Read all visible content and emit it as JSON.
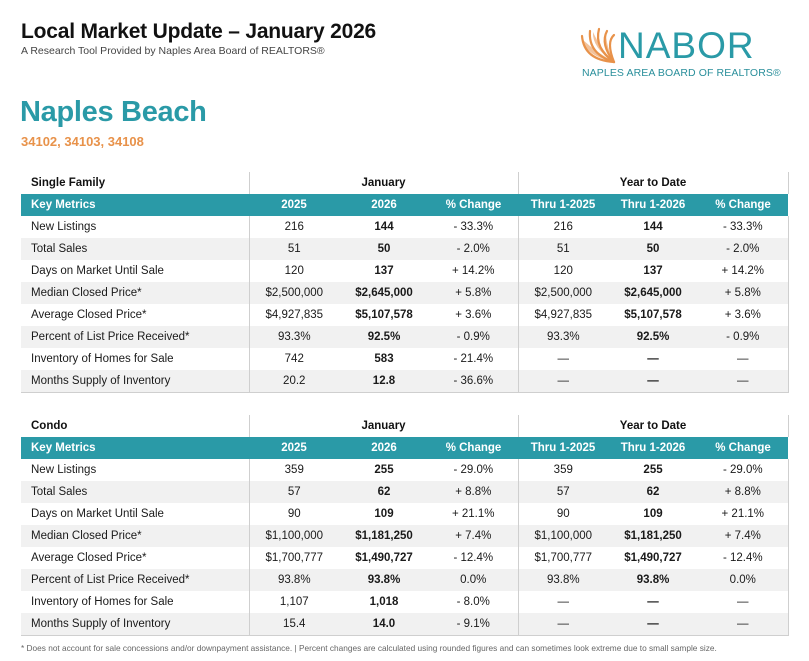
{
  "header": {
    "title": "Local Market Update – January 2026",
    "subtitle": "A Research Tool Provided by Naples Area Board of REALTORS®"
  },
  "logo": {
    "word": "NABOR",
    "tagline": "NAPLES AREA BOARD OF REALTORS®",
    "colors": {
      "teal": "#2a9aa7",
      "orange": "#e8924a"
    }
  },
  "area": {
    "name": "Naples Beach",
    "zips": "34102, 34103, 34108"
  },
  "columns": {
    "key_metrics": "Key Metrics",
    "january": "January",
    "ytd": "Year to Date",
    "y2025": "2025",
    "y2026": "2026",
    "pct": "% Change",
    "thru2025": "Thru 1-2025",
    "thru2026": "Thru 1-2026"
  },
  "single_family": {
    "label": "Single Family",
    "rows": [
      {
        "metric": "New Listings",
        "j25": "216",
        "j26": "144",
        "jpc": "- 33.3%",
        "y25": "216",
        "y26": "144",
        "ypc": "- 33.3%"
      },
      {
        "metric": "Total Sales",
        "j25": "51",
        "j26": "50",
        "jpc": "- 2.0%",
        "y25": "51",
        "y26": "50",
        "ypc": "- 2.0%"
      },
      {
        "metric": "Days on Market Until Sale",
        "j25": "120",
        "j26": "137",
        "jpc": "+ 14.2%",
        "y25": "120",
        "y26": "137",
        "ypc": "+ 14.2%"
      },
      {
        "metric": "Median Closed Price*",
        "j25": "$2,500,000",
        "j26": "$2,645,000",
        "jpc": "+ 5.8%",
        "y25": "$2,500,000",
        "y26": "$2,645,000",
        "ypc": "+ 5.8%"
      },
      {
        "metric": "Average Closed Price*",
        "j25": "$4,927,835",
        "j26": "$5,107,578",
        "jpc": "+ 3.6%",
        "y25": "$4,927,835",
        "y26": "$5,107,578",
        "ypc": "+ 3.6%"
      },
      {
        "metric": "Percent of List Price Received*",
        "j25": "93.3%",
        "j26": "92.5%",
        "jpc": "- 0.9%",
        "y25": "93.3%",
        "y26": "92.5%",
        "ypc": "- 0.9%"
      },
      {
        "metric": "Inventory of Homes for Sale",
        "j25": "742",
        "j26": "583",
        "jpc": "- 21.4%",
        "y25": "—",
        "y26": "—",
        "ypc": "—"
      },
      {
        "metric": "Months Supply of Inventory",
        "j25": "20.2",
        "j26": "12.8",
        "jpc": "- 36.6%",
        "y25": "—",
        "y26": "—",
        "ypc": "—"
      }
    ]
  },
  "condo": {
    "label": "Condo",
    "rows": [
      {
        "metric": "New Listings",
        "j25": "359",
        "j26": "255",
        "jpc": "- 29.0%",
        "y25": "359",
        "y26": "255",
        "ypc": "- 29.0%"
      },
      {
        "metric": "Total Sales",
        "j25": "57",
        "j26": "62",
        "jpc": "+ 8.8%",
        "y25": "57",
        "y26": "62",
        "ypc": "+ 8.8%"
      },
      {
        "metric": "Days on Market Until Sale",
        "j25": "90",
        "j26": "109",
        "jpc": "+ 21.1%",
        "y25": "90",
        "y26": "109",
        "ypc": "+ 21.1%"
      },
      {
        "metric": "Median Closed Price*",
        "j25": "$1,100,000",
        "j26": "$1,181,250",
        "jpc": "+ 7.4%",
        "y25": "$1,100,000",
        "y26": "$1,181,250",
        "ypc": "+ 7.4%"
      },
      {
        "metric": "Average Closed Price*",
        "j25": "$1,700,777",
        "j26": "$1,490,727",
        "jpc": "- 12.4%",
        "y25": "$1,700,777",
        "y26": "$1,490,727",
        "ypc": "- 12.4%"
      },
      {
        "metric": "Percent of List Price Received*",
        "j25": "93.8%",
        "j26": "93.8%",
        "jpc": "0.0%",
        "y25": "93.8%",
        "y26": "93.8%",
        "ypc": "0.0%"
      },
      {
        "metric": "Inventory of Homes for Sale",
        "j25": "1,107",
        "j26": "1,018",
        "jpc": "- 8.0%",
        "y25": "—",
        "y26": "—",
        "ypc": "—"
      },
      {
        "metric": "Months Supply of Inventory",
        "j25": "15.4",
        "j26": "14.0",
        "jpc": "- 9.1%",
        "y25": "—",
        "y26": "—",
        "ypc": "—"
      }
    ]
  },
  "footnote": "* Does not account for sale concessions and/or downpayment assistance. | Percent changes are calculated using rounded figures and can sometimes look extreme due to small sample size."
}
